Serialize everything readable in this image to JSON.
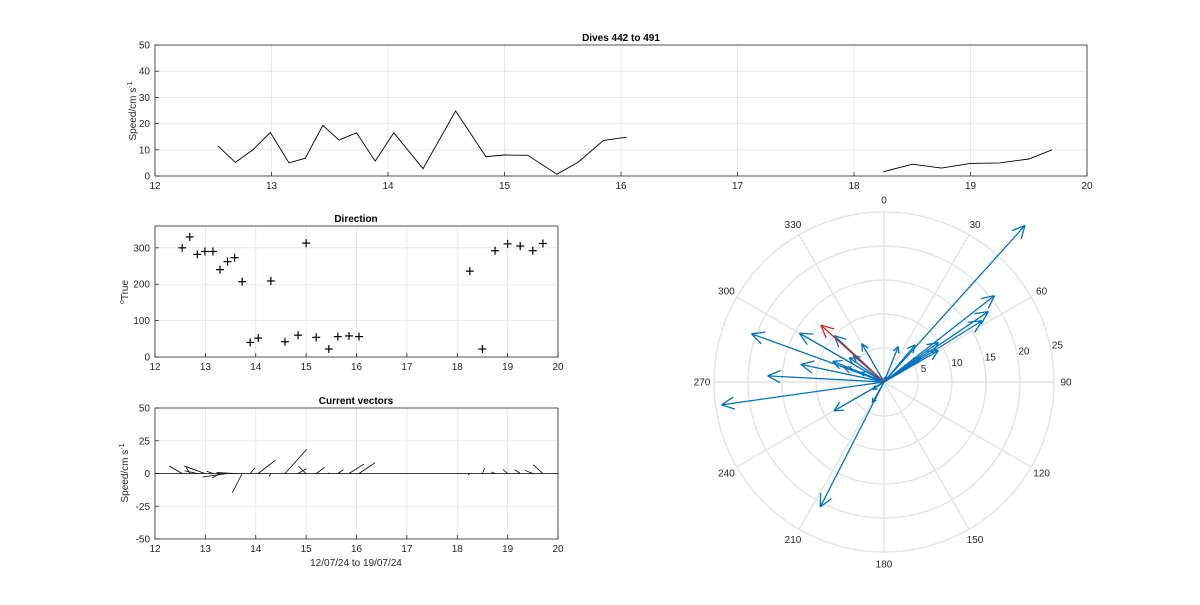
{
  "chart_data": [
    {
      "id": "speed",
      "type": "line",
      "title": "Dives 442 to 491",
      "ylabel": "Speed/cm s",
      "ylabel_exp": "-1",
      "xlim": [
        12,
        20
      ],
      "ylim": [
        0,
        50
      ],
      "xticks": [
        "12",
        "13",
        "14",
        "15",
        "16",
        "17",
        "18",
        "19",
        "20"
      ],
      "yticks": [
        "0",
        "10",
        "20",
        "30",
        "40",
        "50"
      ],
      "grid": true,
      "series": [
        {
          "x": [
            12.54,
            12.69,
            12.84,
            12.99,
            13.15,
            13.29,
            13.44,
            13.58,
            13.73,
            13.89,
            14.05,
            14.3,
            14.58,
            14.84,
            15.0,
            15.2,
            15.45,
            15.63,
            15.85,
            16.05
          ],
          "y": [
            11.5,
            5.2,
            10.0,
            16.6,
            5.0,
            6.8,
            19.3,
            13.7,
            16.5,
            5.7,
            16.5,
            2.8,
            24.8,
            7.4,
            8.0,
            7.9,
            0.7,
            5.2,
            13.6,
            14.8
          ]
        },
        {
          "x": [
            18.25,
            18.5,
            18.75,
            19.0,
            19.25,
            19.5,
            19.7
          ],
          "y": [
            1.6,
            4.5,
            3.0,
            4.8,
            5.0,
            6.5,
            10.0
          ]
        }
      ]
    },
    {
      "id": "direction",
      "type": "scatter",
      "title": "Direction",
      "ylabel": "True",
      "ylabel_sup": "o",
      "xlim": [
        12,
        20
      ],
      "ylim": [
        0,
        360
      ],
      "xticks": [
        "12",
        "13",
        "14",
        "15",
        "16",
        "17",
        "18",
        "19",
        "20"
      ],
      "yticks": [
        "0",
        "100",
        "200",
        "300"
      ],
      "grid": true,
      "marker": "+",
      "x": [
        12.54,
        12.69,
        12.84,
        12.99,
        13.15,
        13.29,
        13.44,
        13.58,
        13.73,
        13.89,
        14.05,
        14.3,
        14.58,
        14.84,
        15.0,
        15.2,
        15.45,
        15.63,
        15.85,
        16.05,
        18.25,
        18.5,
        18.75,
        19.0,
        19.25,
        19.5,
        19.7
      ],
      "y": [
        300,
        330,
        282,
        290,
        290,
        240,
        262,
        273,
        207,
        40,
        52,
        209,
        42,
        60,
        313,
        54,
        22,
        56,
        58,
        56,
        236,
        22,
        292,
        311,
        305,
        292,
        312
      ]
    },
    {
      "id": "vectors",
      "type": "quiver",
      "title": "Current vectors",
      "ylabel": "Speed/cm s",
      "ylabel_exp": "-1",
      "xlabel": "12/07/24 to 19/07/24",
      "xlim": [
        12,
        20
      ],
      "ylim": [
        -50,
        50
      ],
      "xticks": [
        "12",
        "13",
        "14",
        "15",
        "16",
        "17",
        "18",
        "19",
        "20"
      ],
      "yticks": [
        "-50",
        "-25",
        "0",
        "25",
        "50"
      ],
      "grid": true
    },
    {
      "id": "compass",
      "type": "polar",
      "angle_ticks": [
        "0",
        "30",
        "60",
        "90",
        "120",
        "150",
        "180",
        "210",
        "240",
        "270",
        "300",
        "330"
      ],
      "radius_ticks": [
        "5",
        "10",
        "15",
        "20",
        "25"
      ],
      "rmax": 25,
      "highlight_index": 26,
      "colors": {
        "vector": "#0072BD",
        "highlight": "#D62728"
      }
    }
  ],
  "colors": {
    "line": "#000000",
    "grid": "#e3e3e3",
    "axis": "#262626"
  }
}
